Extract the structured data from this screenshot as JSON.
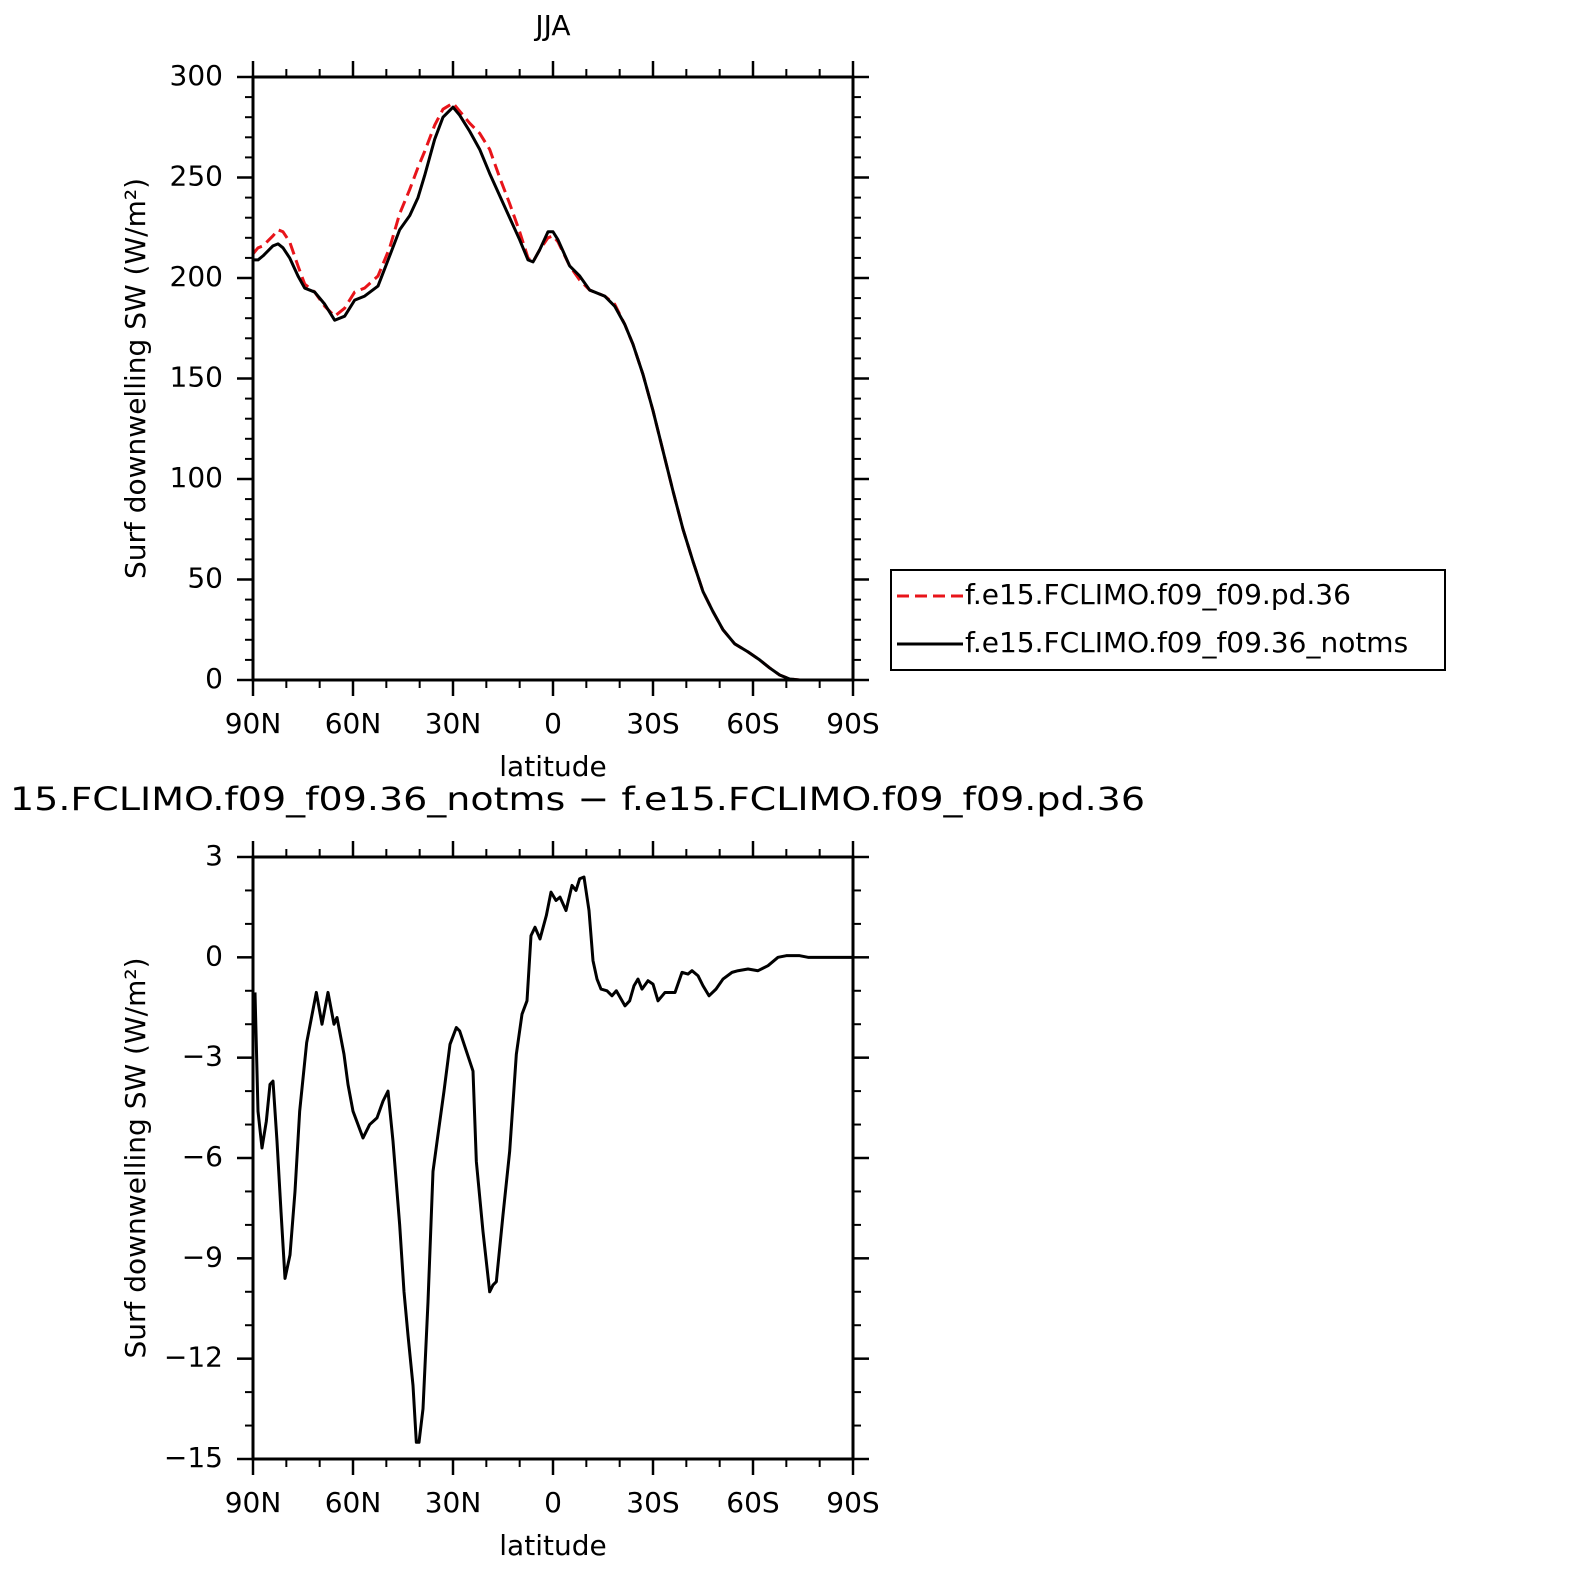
{
  "chart_data": [
    {
      "type": "line",
      "title": "JJA",
      "xlabel": "latitude",
      "ylabel": "Surf downwelling SW (W/m²)",
      "x": [
        90,
        88.5,
        87,
        84,
        82.5,
        81,
        79,
        76.5,
        74.5,
        71.5,
        68.5,
        65.5,
        62.5,
        59.5,
        56.5,
        52.5,
        49,
        46,
        43,
        40.5,
        38.5,
        35.5,
        33,
        30,
        28,
        25,
        22,
        19,
        16,
        13,
        10,
        7.5,
        6,
        4,
        1.5,
        0,
        -1.5,
        -5,
        -8,
        -11,
        -15.5,
        -18.5,
        -21.5,
        -24,
        -27,
        -30,
        -33,
        -36,
        -39,
        -42,
        -45,
        -48,
        -51,
        -54.5,
        -58.5,
        -62,
        -65,
        -68,
        -71,
        -74,
        -90
      ],
      "series": [
        {
          "name": "f.e15.FCLIMO.f09_f09.pd.36",
          "color": "#e8141a",
          "dash": true,
          "values": [
            212,
            215,
            216,
            221,
            224,
            223,
            218,
            206,
            197,
            193,
            186,
            181,
            185,
            193,
            195,
            201,
            215,
            232,
            244,
            255,
            263,
            276,
            284,
            287,
            283,
            277,
            272,
            264,
            250,
            237,
            223,
            210,
            208,
            214,
            220,
            221,
            218,
            206,
            199,
            194,
            191,
            187,
            177,
            167,
            152,
            134,
            114,
            94,
            75,
            59,
            44,
            34,
            25,
            18,
            14,
            10,
            6,
            2.5,
            0.5,
            0,
            0
          ]
        },
        {
          "name": "f.e15.FCLIMO.f09_f09.36_notms",
          "color": "#000000",
          "dash": false,
          "values": [
            209,
            209,
            211,
            216,
            217,
            215,
            210,
            201,
            195,
            193,
            187,
            179,
            181,
            189,
            191,
            196,
            211,
            224,
            231,
            240,
            251,
            269,
            280,
            285,
            281,
            273,
            264,
            252,
            241,
            230,
            219,
            209,
            208,
            214,
            223,
            223,
            219,
            206,
            201,
            194,
            191,
            186,
            177,
            167,
            152,
            134,
            114,
            94,
            75,
            59,
            44,
            34,
            25,
            18,
            14,
            10,
            6,
            2.5,
            0.5,
            0,
            0
          ]
        }
      ],
      "xlim": [
        90,
        -90
      ],
      "xticks": [
        {
          "value": 90,
          "label": "90N"
        },
        {
          "value": 60,
          "label": "60N"
        },
        {
          "value": 30,
          "label": "30N"
        },
        0,
        {
          "value": -30,
          "label": "30S"
        },
        {
          "value": -60,
          "label": "60S"
        },
        {
          "value": -90,
          "label": "90S"
        }
      ],
      "xminorticks": [
        80,
        70,
        50,
        40,
        20,
        10,
        -10,
        -20,
        -40,
        -50,
        -70,
        -80
      ],
      "ylim": [
        0,
        300
      ],
      "yticks": [
        0,
        50,
        100,
        150,
        200,
        250,
        300
      ],
      "yminorticks": [
        10,
        20,
        30,
        40,
        60,
        70,
        80,
        90,
        110,
        120,
        130,
        140,
        160,
        170,
        180,
        190,
        210,
        220,
        230,
        240,
        260,
        270,
        280,
        290
      ],
      "legend": "right"
    },
    {
      "type": "line",
      "title": "15.FCLIMO.f09_f09.36_notms − f.e15.FCLIMO.f09_f09.pd.36",
      "xlabel": "latitude",
      "ylabel": "Surf downwelling SW (W/m²)",
      "x": [
        89.4,
        88.5,
        87.3,
        86,
        84.9,
        84,
        82.8,
        81.6,
        80.4,
        78.9,
        77.4,
        76,
        73.9,
        71,
        69.3,
        67.5,
        65.7,
        64.8,
        62.7,
        61.5,
        60,
        58.5,
        57,
        55,
        52.8,
        51,
        49.5,
        48,
        46,
        44.7,
        43.5,
        42,
        41,
        40.2,
        39,
        37.5,
        36,
        34.5,
        32.7,
        30.9,
        29,
        28,
        26,
        24,
        23,
        21,
        19,
        18,
        17,
        15,
        13,
        11,
        9.3,
        7.8,
        6.6,
        5.4,
        3.9,
        2,
        0.6,
        -0.9,
        -2.1,
        -3.9,
        -5.7,
        -6.9,
        -8,
        -9.3,
        -10.8,
        -12,
        -13.2,
        -14.4,
        -16.2,
        -17.7,
        -19,
        -21.6,
        -23,
        -24.3,
        -25.5,
        -26.7,
        -28.5,
        -30,
        -31.5,
        -33.6,
        -36.6,
        -38.7,
        -40.5,
        -41.7,
        -43.5,
        -45,
        -46.8,
        -48.9,
        -51,
        -53.7,
        -55.5,
        -58.5,
        -61.5,
        -64.5,
        -67.5,
        -70,
        -74,
        -76.5,
        -90
      ],
      "values": [
        -1.05,
        -4.6,
        -5.7,
        -4.9,
        -3.8,
        -3.7,
        -5.5,
        -7.6,
        -9.6,
        -8.9,
        -7.0,
        -4.6,
        -2.55,
        -1.05,
        -2.0,
        -1.05,
        -2.0,
        -1.8,
        -2.9,
        -3.8,
        -4.6,
        -5.0,
        -5.4,
        -5.0,
        -4.8,
        -4.3,
        -4.0,
        -5.5,
        -8.0,
        -10.0,
        -11.3,
        -12.8,
        -14.5,
        -14.5,
        -13.5,
        -10.3,
        -6.4,
        -5.3,
        -4.0,
        -2.6,
        -2.1,
        -2.2,
        -2.8,
        -3.4,
        -6.1,
        -8.2,
        -10.0,
        -9.8,
        -9.7,
        -7.7,
        -5.8,
        -2.9,
        -1.7,
        -1.3,
        0.65,
        0.9,
        0.55,
        1.25,
        1.95,
        1.7,
        1.8,
        1.4,
        2.15,
        2.0,
        2.35,
        2.4,
        1.4,
        -0.1,
        -0.65,
        -0.95,
        -1.0,
        -1.15,
        -1.0,
        -1.45,
        -1.3,
        -0.85,
        -0.65,
        -0.95,
        -0.7,
        -0.8,
        -1.3,
        -1.05,
        -1.05,
        -0.45,
        -0.5,
        -0.4,
        -0.55,
        -0.85,
        -1.15,
        -0.95,
        -0.65,
        -0.45,
        -0.4,
        -0.35,
        -0.4,
        -0.25,
        0,
        0.05,
        0.05,
        0,
        0
      ],
      "color": "#000000",
      "xlim": [
        90,
        -90
      ],
      "xticks": [
        {
          "value": 90,
          "label": "90N"
        },
        {
          "value": 60,
          "label": "60N"
        },
        {
          "value": 30,
          "label": "30N"
        },
        0,
        {
          "value": -30,
          "label": "30S"
        },
        {
          "value": -60,
          "label": "60S"
        },
        {
          "value": -90,
          "label": "90S"
        }
      ],
      "xminorticks": [
        80,
        70,
        50,
        40,
        20,
        10,
        -10,
        -20,
        -40,
        -50,
        -70,
        -80
      ],
      "ylim": [
        -15,
        3
      ],
      "yticks": [
        {
          "value": -15,
          "label": "−15"
        },
        {
          "value": -12,
          "label": "−12"
        },
        {
          "value": -9,
          "label": "−9"
        },
        {
          "value": -6,
          "label": "−6"
        },
        {
          "value": -3,
          "label": "−3"
        },
        0,
        3
      ],
      "yminorticks": [
        -14,
        -13,
        -11,
        -10,
        -8,
        -7,
        -5,
        -4,
        -2,
        -1,
        1,
        2
      ]
    }
  ]
}
